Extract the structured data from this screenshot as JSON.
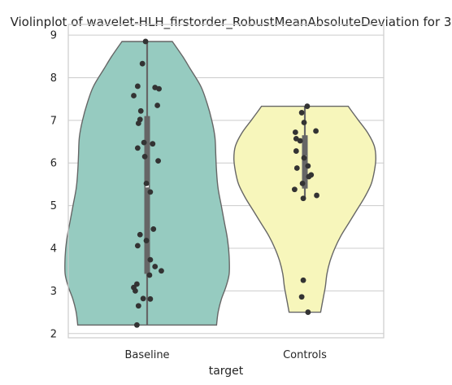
{
  "chart_data": {
    "type": "violin",
    "title": "Violinplot of wavelet-HLH_firstorder_RobustMeanAbsoluteDeviation for 3",
    "xlabel": "target",
    "ylabel": "",
    "ylim": [
      1.9,
      9.25
    ],
    "yticks": [
      2,
      3,
      4,
      5,
      6,
      7,
      8,
      9
    ],
    "grid": true,
    "categories": [
      "Baseline",
      "Controls"
    ],
    "series": [
      {
        "category": "Baseline",
        "color": "#96cbc0",
        "density": [
          [
            2.2,
            88
          ],
          [
            2.5,
            90
          ],
          [
            2.8,
            94
          ],
          [
            3.1,
            100
          ],
          [
            3.4,
            104
          ],
          [
            3.8,
            104
          ],
          [
            4.2,
            102
          ],
          [
            4.6,
            98
          ],
          [
            5.0,
            94
          ],
          [
            5.4,
            90
          ],
          [
            5.8,
            88
          ],
          [
            6.2,
            87
          ],
          [
            6.6,
            86
          ],
          [
            7.0,
            82
          ],
          [
            7.4,
            76
          ],
          [
            7.8,
            68
          ],
          [
            8.2,
            55
          ],
          [
            8.5,
            45
          ],
          [
            8.85,
            32
          ]
        ],
        "box": {
          "q1": 3.4,
          "median": 5.45,
          "q3": 7.1,
          "whisker_low": 2.2,
          "whisker_high": 8.85
        },
        "points": [
          [
            8.85,
            -0.02
          ],
          [
            8.33,
            -0.06
          ],
          [
            7.8,
            -0.12
          ],
          [
            7.77,
            0.1
          ],
          [
            7.74,
            0.15
          ],
          [
            7.58,
            -0.17
          ],
          [
            7.35,
            0.13
          ],
          [
            7.22,
            -0.08
          ],
          [
            7.02,
            -0.09
          ],
          [
            6.93,
            -0.11
          ],
          [
            6.48,
            -0.04
          ],
          [
            6.45,
            0.07
          ],
          [
            6.35,
            -0.12
          ],
          [
            6.15,
            -0.03
          ],
          [
            6.05,
            0.14
          ],
          [
            5.52,
            -0.01
          ],
          [
            5.32,
            0.04
          ],
          [
            4.45,
            0.08
          ],
          [
            4.32,
            -0.09
          ],
          [
            4.18,
            -0.01
          ],
          [
            4.06,
            -0.12
          ],
          [
            3.73,
            0.04
          ],
          [
            3.57,
            0.1
          ],
          [
            3.47,
            0.18
          ],
          [
            3.37,
            0.03
          ],
          [
            3.16,
            -0.13
          ],
          [
            3.08,
            -0.17
          ],
          [
            3.0,
            -0.15
          ],
          [
            2.82,
            -0.05
          ],
          [
            2.81,
            0.04
          ],
          [
            2.65,
            -0.11
          ],
          [
            2.2,
            -0.13
          ]
        ]
      },
      {
        "category": "Controls",
        "color": "#f7f6bb",
        "density": [
          [
            2.5,
            20
          ],
          [
            2.7,
            22
          ],
          [
            2.9,
            24
          ],
          [
            3.1,
            26
          ],
          [
            3.4,
            28
          ],
          [
            3.7,
            32
          ],
          [
            4.0,
            38
          ],
          [
            4.3,
            46
          ],
          [
            4.6,
            56
          ],
          [
            4.9,
            66
          ],
          [
            5.2,
            76
          ],
          [
            5.5,
            84
          ],
          [
            5.8,
            88
          ],
          [
            6.1,
            90
          ],
          [
            6.4,
            88
          ],
          [
            6.7,
            80
          ],
          [
            7.0,
            68
          ],
          [
            7.2,
            60
          ],
          [
            7.33,
            55
          ]
        ],
        "box": {
          "q1": 5.4,
          "median": 6.15,
          "q3": 6.65,
          "whisker_low": 5.2,
          "whisker_high": 7.33
        },
        "points": [
          [
            7.33,
            0.03
          ],
          [
            7.18,
            -0.04
          ],
          [
            6.95,
            -0.01
          ],
          [
            6.75,
            0.14
          ],
          [
            6.72,
            -0.12
          ],
          [
            6.57,
            -0.11
          ],
          [
            6.52,
            -0.06
          ],
          [
            6.28,
            -0.11
          ],
          [
            6.12,
            -0.01
          ],
          [
            5.93,
            0.04
          ],
          [
            5.88,
            -0.1
          ],
          [
            5.72,
            0.08
          ],
          [
            5.68,
            0.05
          ],
          [
            5.52,
            -0.03
          ],
          [
            5.38,
            -0.13
          ],
          [
            5.24,
            0.15
          ],
          [
            5.17,
            -0.02
          ],
          [
            3.25,
            -0.02
          ],
          [
            2.86,
            -0.04
          ],
          [
            2.5,
            0.04
          ]
        ]
      }
    ]
  }
}
